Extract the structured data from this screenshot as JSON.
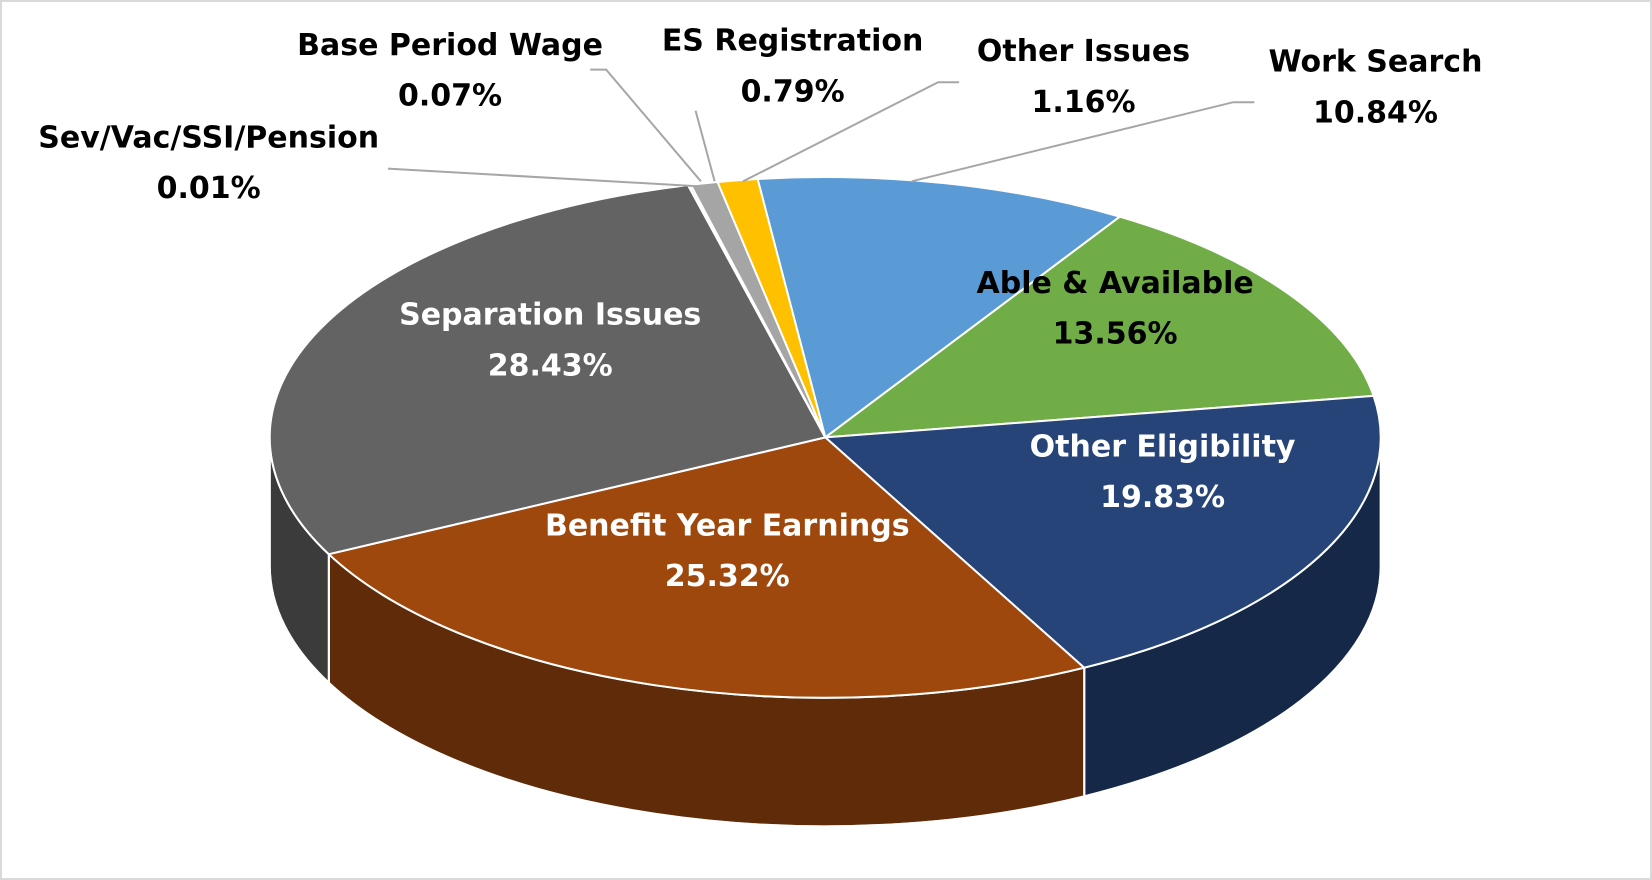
{
  "chart_data": {
    "type": "pie",
    "categories": [
      "Work Search",
      "Able & Available",
      "Other Eligibility",
      "Benefit Year Earnings",
      "Separation Issues",
      "Sev/Vac/SSI/Pension",
      "Base Period Wage",
      "ES Registration",
      "Other Issues"
    ],
    "values": [
      10.84,
      13.56,
      19.83,
      25.32,
      28.43,
      0.01,
      0.07,
      0.79,
      1.16
    ],
    "value_labels": [
      "10.84%",
      "13.56%",
      "19.83%",
      "25.32%",
      "28.43%",
      "0.01%",
      "0.07%",
      "0.79%",
      "1.16%"
    ],
    "colors": [
      "#5b9bd5",
      "#70ad47",
      "#264478",
      "#9e480e",
      "#636363",
      "#997300",
      "#7f7f7f",
      "#a5a5a5",
      "#ffc000"
    ]
  }
}
